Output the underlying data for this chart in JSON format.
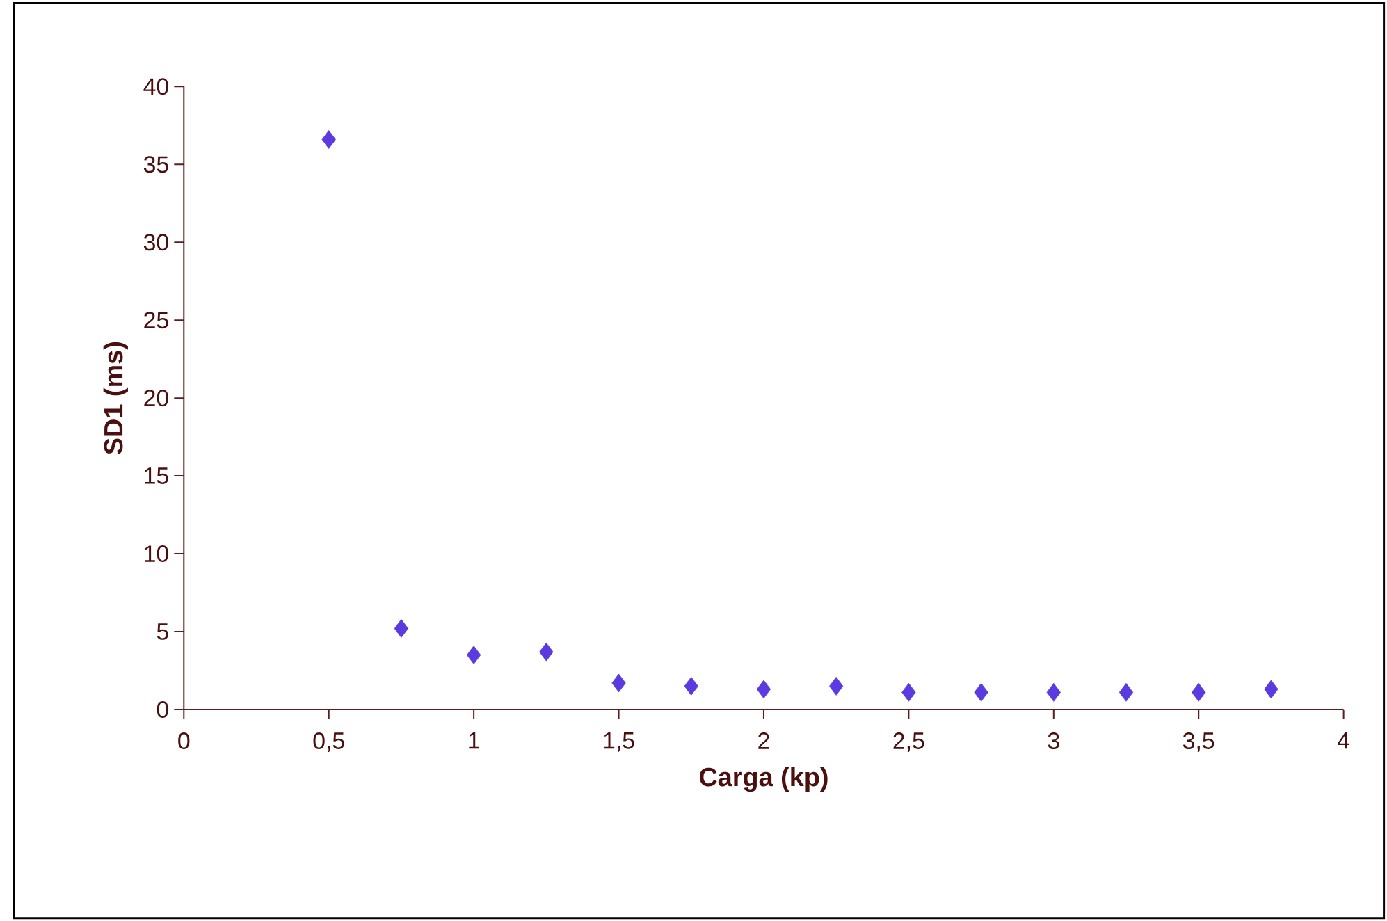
{
  "chart_data": {
    "type": "scatter",
    "xlabel": "Carga (kp)",
    "ylabel": "SD1 (ms)",
    "x": [
      0.5,
      0.75,
      1,
      1.25,
      1.5,
      1.75,
      2,
      2.25,
      2.5,
      2.75,
      3,
      3.25,
      3.5,
      3.75
    ],
    "values": [
      36.6,
      5.2,
      3.5,
      3.7,
      1.7,
      1.5,
      1.3,
      1.5,
      1.1,
      1.1,
      1.1,
      1.1,
      1.1,
      1.3
    ],
    "color": "#5b3be0",
    "marker": "diamond",
    "grid": false,
    "xlim": [
      0,
      4
    ],
    "xticks": [
      0,
      {
        "value": 0.5,
        "label": "0,5"
      },
      1,
      {
        "value": 1.5,
        "label": "1,5"
      },
      2,
      {
        "value": 2.5,
        "label": "2,5"
      },
      3,
      {
        "value": 3.5,
        "label": "3,5"
      },
      4
    ],
    "ylim": [
      0,
      40
    ],
    "yticks": [
      0,
      5,
      10,
      15,
      20,
      25,
      30,
      35,
      40
    ]
  }
}
